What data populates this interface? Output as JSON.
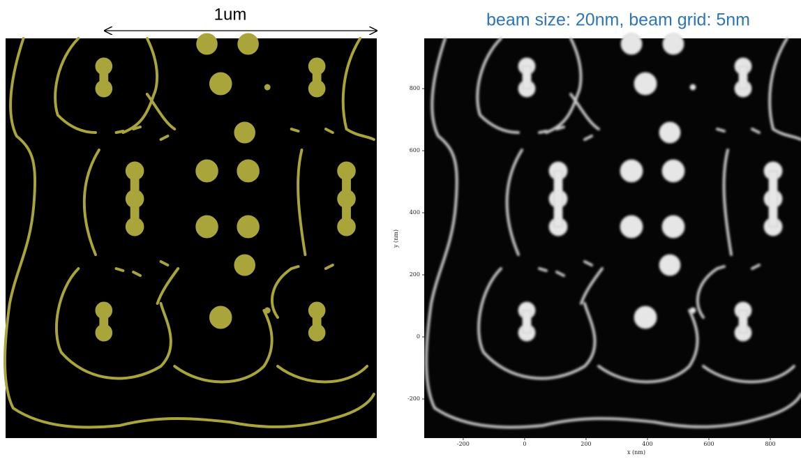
{
  "left_panel": {
    "scale_label": "1um"
  },
  "right_panel": {
    "title": "beam size: 20nm, beam grid: 5nm",
    "x_label": "x (nm)",
    "y_label": "y (nm)",
    "xlim": [
      -327,
      900
    ],
    "ylim": [
      -326,
      962
    ],
    "xticks": [
      -200,
      0,
      200,
      400,
      600,
      800
    ],
    "yticks": [
      -200,
      0,
      200,
      400,
      600,
      800
    ]
  }
}
